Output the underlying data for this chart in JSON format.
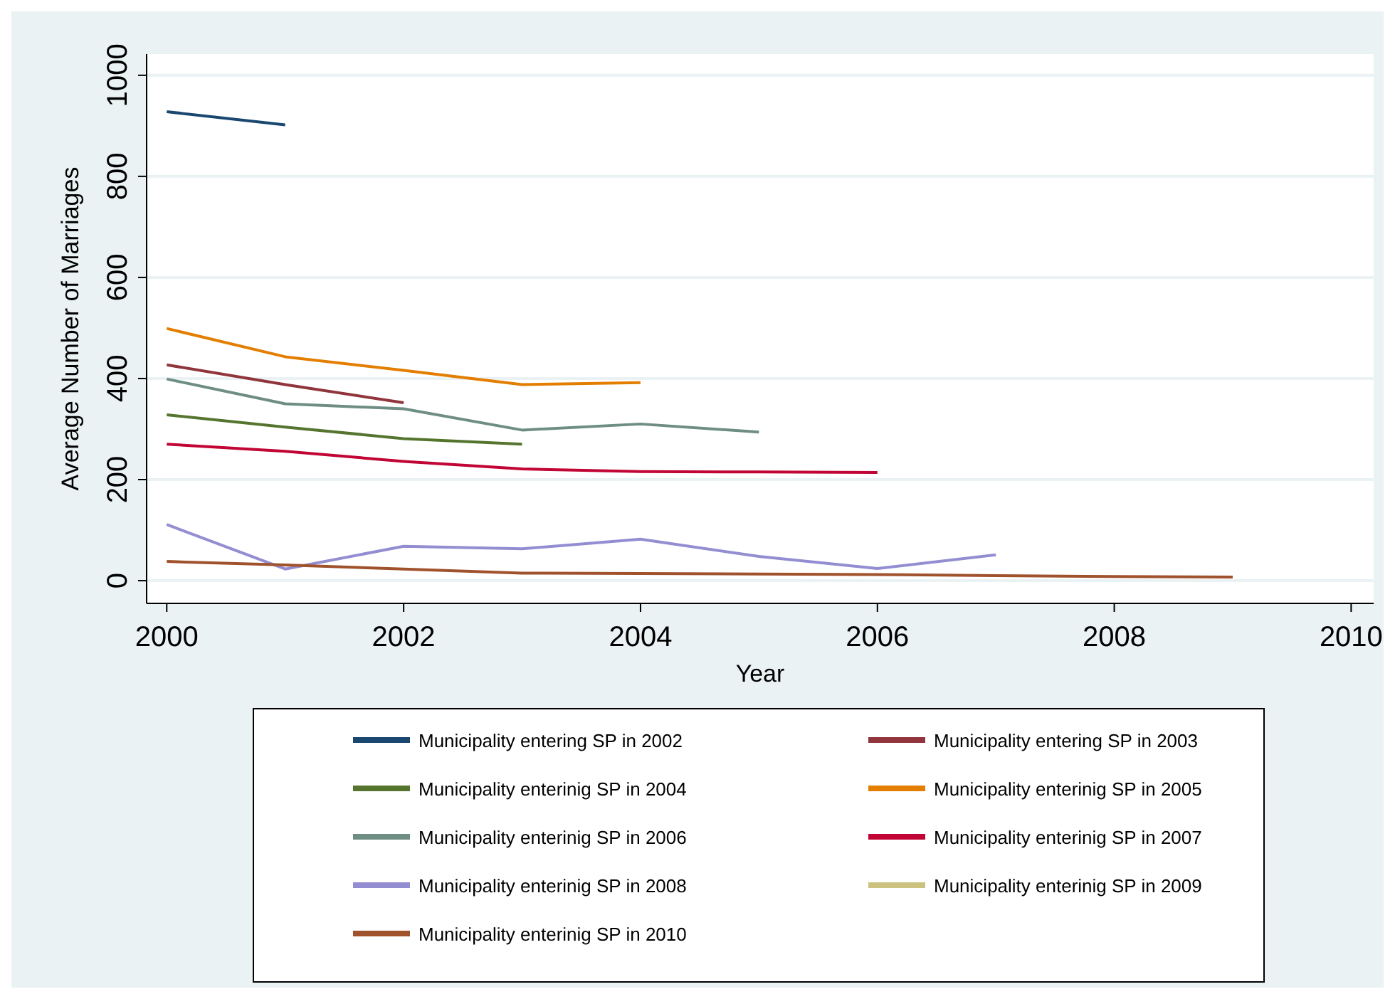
{
  "chart_data": {
    "type": "line",
    "xlabel": "Year",
    "ylabel": "Average Number of Marriages",
    "xlim": [
      1999.83,
      2010.19
    ],
    "xticks": [
      2000,
      2002,
      2004,
      2006,
      2008,
      2010
    ],
    "ylim": [
      -45,
      1042
    ],
    "yticks": [
      0,
      200,
      400,
      600,
      800,
      1000
    ],
    "grid": "y",
    "legend": "bottom",
    "line_style": "solid",
    "marker": "none",
    "x": [
      2000,
      2001,
      2002,
      2003,
      2004,
      2005,
      2006,
      2007,
      2008,
      2009
    ],
    "series": [
      {
        "name": "Municipality entering SP in 2002",
        "color": "#1a476f",
        "values": [
          928,
          902,
          null,
          null,
          null,
          null,
          null,
          null,
          null,
          null
        ]
      },
      {
        "name": "Municipality entering SP in 2003",
        "color": "#90353b",
        "values": [
          427,
          388,
          352,
          null,
          null,
          null,
          null,
          null,
          null,
          null
        ]
      },
      {
        "name": "Municipality enterinig SP in 2004",
        "color": "#55752f",
        "values": [
          328,
          304,
          281,
          270,
          null,
          null,
          null,
          null,
          null,
          null
        ]
      },
      {
        "name": "Municipality enterinig SP in 2005",
        "color": "#e37e00",
        "values": [
          499,
          443,
          416,
          388,
          392,
          null,
          null,
          null,
          null,
          null
        ]
      },
      {
        "name": "Municipality enterinig SP in 2006",
        "color": "#6e8e84",
        "values": [
          399,
          350,
          340,
          298,
          310,
          294,
          null,
          null,
          null,
          null
        ]
      },
      {
        "name": "Municipality enterinig SP in 2007",
        "color": "#c10534",
        "values": [
          270,
          256,
          236,
          221,
          216,
          215,
          214,
          null,
          null,
          null
        ]
      },
      {
        "name": "Municipality enterinig SP in 2008",
        "color": "#938dd2",
        "values": [
          111,
          23,
          68,
          63,
          82,
          48,
          24,
          51,
          null,
          null
        ]
      },
      {
        "name": "Municipality enterinig SP in 2009",
        "color": "#cac27e",
        "values": [
          null,
          null,
          null,
          null,
          null,
          null,
          null,
          null,
          null,
          null
        ]
      },
      {
        "name": "Municipality enterinig SP in 2010",
        "color": "#a0522d",
        "values": [
          38,
          31,
          23,
          15,
          14,
          13,
          12,
          10,
          8,
          7
        ]
      }
    ]
  }
}
